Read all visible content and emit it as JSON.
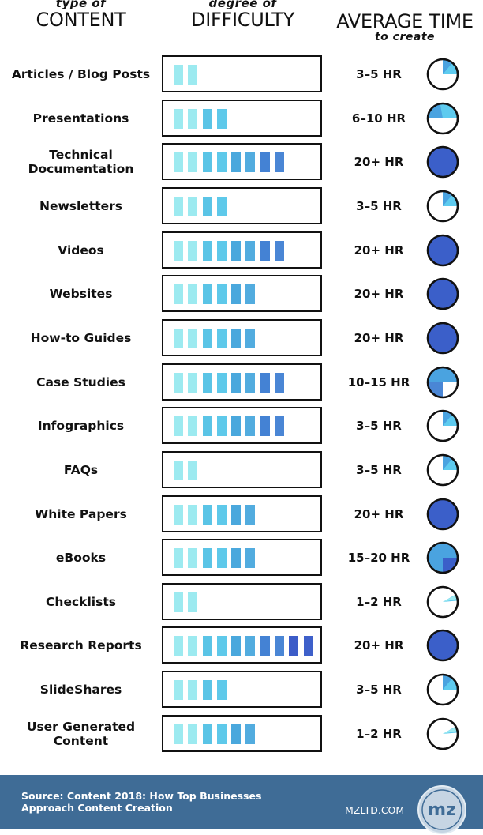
{
  "headers": {
    "content_small": "type of",
    "content_big": "CONTENT",
    "difficulty_small": "degree of",
    "difficulty_big": "DIFFICULTY",
    "time_big": "AVERAGE TIME",
    "time_small": "to create"
  },
  "colors": {
    "bar_levels": [
      "#9ceaf0",
      "#9ceaf0",
      "#5ac4e6",
      "#5ec9ea",
      "#4aa8dd",
      "#52acdf",
      "#4482d4",
      "#4a86d5",
      "#3c5cc8",
      "#3e60ca"
    ],
    "pie_light": "#5ecbef",
    "pie_mid": "#4aa3e0",
    "pie_dark": "#3b5fc9",
    "footer_bg": "#3f6c96"
  },
  "rows": [
    {
      "label": "Articles / Blog Posts",
      "difficulty": 2,
      "time": "3–5 HR",
      "pie": "quarter"
    },
    {
      "label": "Presentations",
      "difficulty": 4,
      "time": "6–10 HR",
      "pie": "half"
    },
    {
      "label": "Technical Documentation",
      "difficulty": 8,
      "time": "20+ HR",
      "pie": "full"
    },
    {
      "label": "Newsletters",
      "difficulty": 4,
      "time": "3–5 HR",
      "pie": "quarter"
    },
    {
      "label": "Videos",
      "difficulty": 8,
      "time": "20+ HR",
      "pie": "full"
    },
    {
      "label": "Websites",
      "difficulty": 6,
      "time": "20+ HR",
      "pie": "full"
    },
    {
      "label": "How-to Guides",
      "difficulty": 6,
      "time": "20+ HR",
      "pie": "full"
    },
    {
      "label": "Case Studies",
      "difficulty": 8,
      "time": "10–15 HR",
      "pie": "three-quarter"
    },
    {
      "label": "Infographics",
      "difficulty": 8,
      "time": "3–5 HR",
      "pie": "quarter"
    },
    {
      "label": "FAQs",
      "difficulty": 2,
      "time": "3–5 HR",
      "pie": "quarter"
    },
    {
      "label": "White Papers",
      "difficulty": 6,
      "time": "20+ HR",
      "pie": "full"
    },
    {
      "label": "eBooks",
      "difficulty": 6,
      "time": "15–20 HR",
      "pie": "near-full"
    },
    {
      "label": "Checklists",
      "difficulty": 2,
      "time": "1–2 HR",
      "pie": "sliver"
    },
    {
      "label": "Research Reports",
      "difficulty": 10,
      "time": "20+ HR",
      "pie": "full"
    },
    {
      "label": "SlideShares",
      "difficulty": 4,
      "time": "3–5 HR",
      "pie": "quarter"
    },
    {
      "label": "User Generated Content",
      "difficulty": 6,
      "time": "1–2 HR",
      "pie": "sliver"
    }
  ],
  "footer": {
    "source": "Source: Content 2018: How Top Businesses Approach Content Creation",
    "site": "MZLTD.COM",
    "logo_text": "mz"
  },
  "chart_data": {
    "type": "table",
    "title": "Type of Content vs Degree of Difficulty vs Average Time to Create",
    "columns": [
      "type of CONTENT",
      "degree of DIFFICULTY",
      "AVERAGE TIME to create"
    ],
    "categories": [
      "Articles / Blog Posts",
      "Presentations",
      "Technical Documentation",
      "Newsletters",
      "Videos",
      "Websites",
      "How-to Guides",
      "Case Studies",
      "Infographics",
      "FAQs",
      "White Papers",
      "eBooks",
      "Checklists",
      "Research Reports",
      "SlideShares",
      "User Generated Content"
    ],
    "series": [
      {
        "name": "Difficulty (bars out of 10)",
        "values": [
          2,
          4,
          8,
          4,
          8,
          6,
          6,
          8,
          8,
          2,
          6,
          6,
          2,
          10,
          4,
          6
        ]
      },
      {
        "name": "Average Time",
        "values": [
          "3–5 HR",
          "6–10 HR",
          "20+ HR",
          "3–5 HR",
          "20+ HR",
          "20+ HR",
          "20+ HR",
          "10–15 HR",
          "3–5 HR",
          "3–5 HR",
          "20+ HR",
          "15–20 HR",
          "1–2 HR",
          "20+ HR",
          "3–5 HR",
          "1–2 HR"
        ]
      }
    ],
    "ylim": [
      0,
      10
    ]
  }
}
